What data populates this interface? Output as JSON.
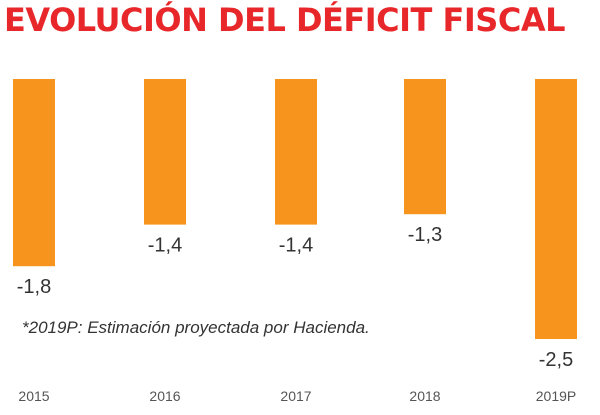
{
  "chart_title": "EVOLUCIÓN DEL DÉFICIT FISCAL",
  "footnote": "*2019P:  Estimación  proyectada por Hacienda.",
  "colors": {
    "bar": "#f7941d",
    "title": "#e8272b"
  },
  "chart_data": {
    "type": "bar",
    "title": "EVOLUCIÓN DEL DÉFICIT FISCAL",
    "categories": [
      "2015",
      "2016",
      "2017",
      "2018",
      "2019P"
    ],
    "values": [
      -1.8,
      -1.4,
      -1.4,
      -1.3,
      -2.5
    ],
    "value_labels": [
      "-1,8",
      "-1,4",
      "-1,4",
      "-1,3",
      "-2,5"
    ],
    "xlabel": "",
    "ylabel": "",
    "ylim": [
      -2.5,
      0
    ],
    "grid": false,
    "legend": "none"
  }
}
